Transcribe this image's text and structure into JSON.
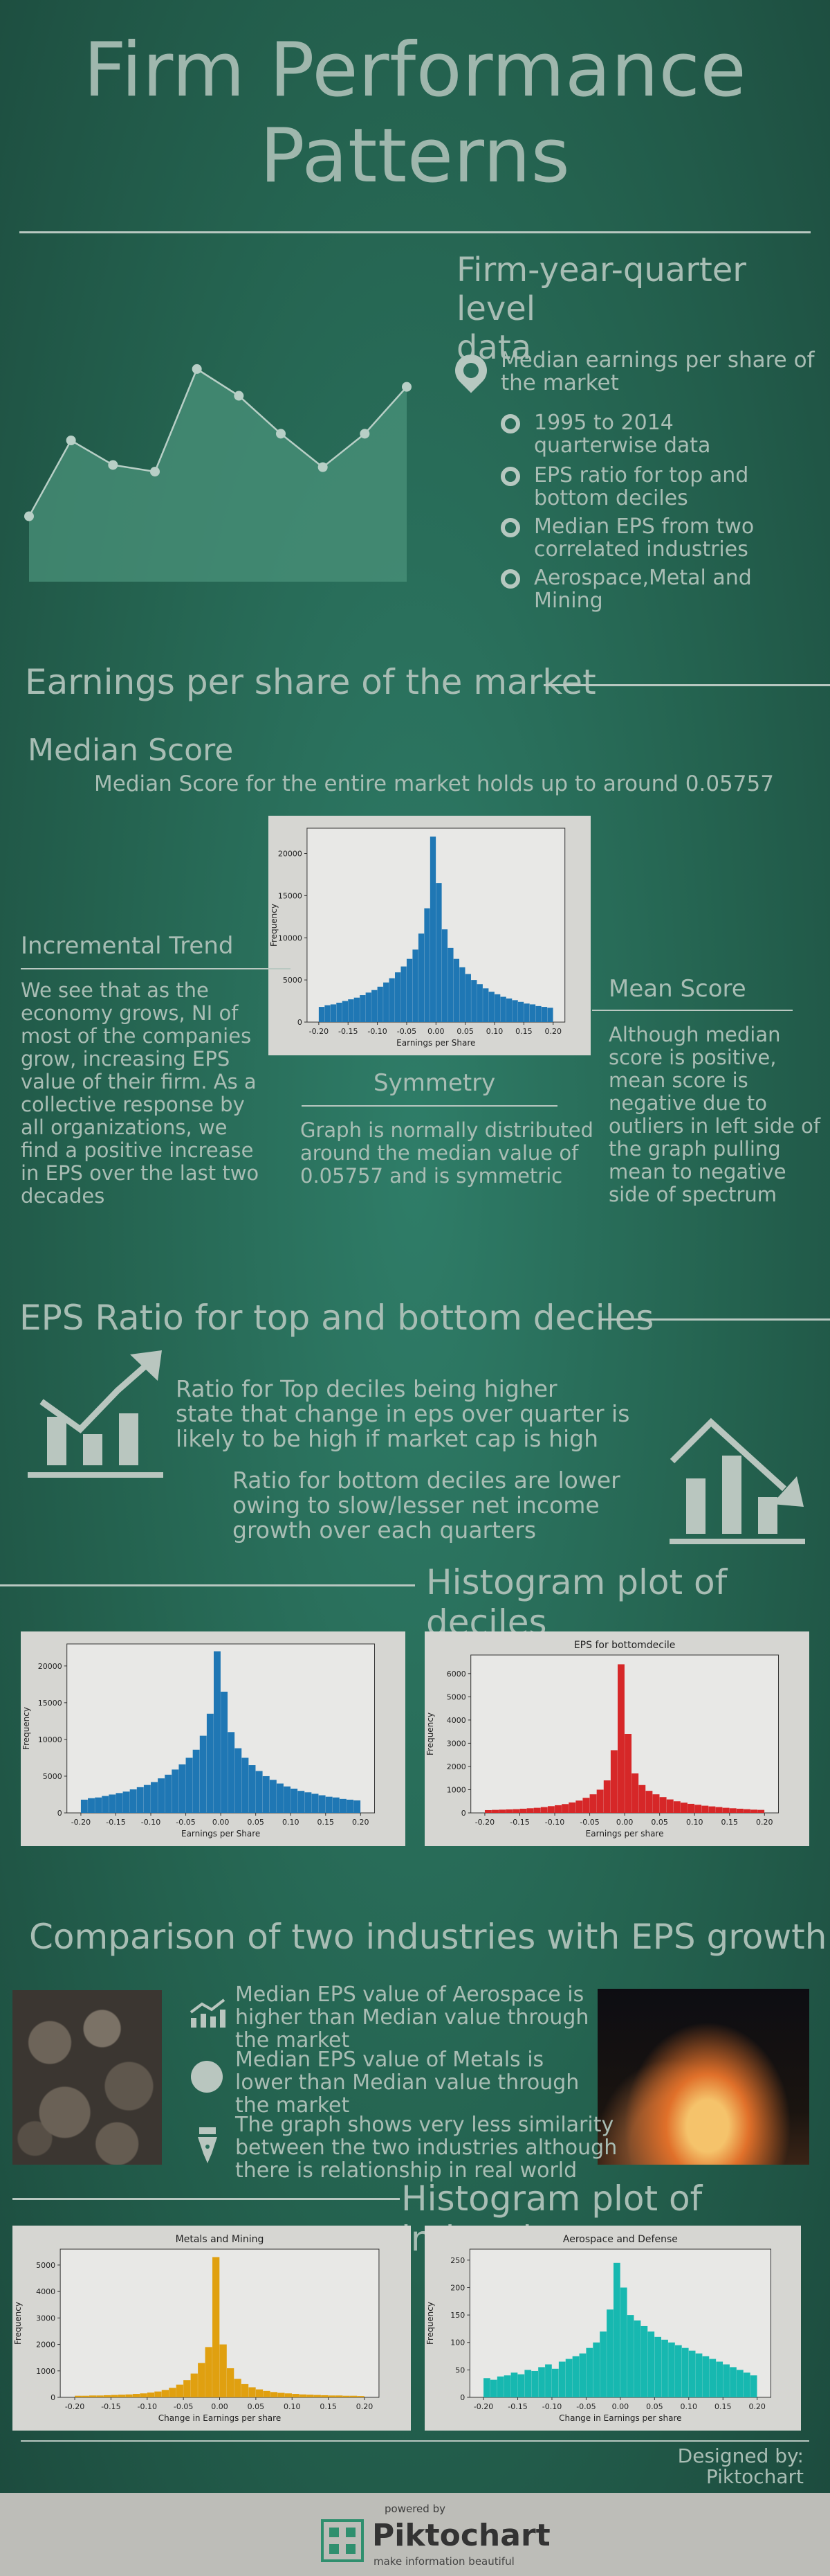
{
  "header": {
    "title_line1": "Firm Performance",
    "title_line2": "Patterns"
  },
  "intro": {
    "heading_line1": "Firm-year-quarter level",
    "heading_line2": "data",
    "main_point_line1": "Median earnings per share of",
    "main_point_line2": "the market",
    "bullets": [
      {
        "line1": "1995 to 2014",
        "line2": "quarterwise data"
      },
      {
        "line1": "EPS ratio for top and",
        "line2": "bottom deciles"
      },
      {
        "line1": "Median EPS from two",
        "line2": "correlated industries"
      },
      {
        "line1": "Aerospace,Metal and",
        "line2": "Mining"
      }
    ],
    "area_chart": {
      "values": [
        2,
        5.4,
        4.3,
        4.0,
        8.6,
        7.4,
        5.7,
        4.2,
        5.7,
        7.8
      ]
    }
  },
  "section_eps": {
    "heading": "Earnings per share of the market",
    "median_title": "Median Score",
    "median_text": "Median Score for the entire market holds up to around 0.05757",
    "incremental_title": "Incremental Trend",
    "incremental_lines": [
      "We see that as the",
      "economy grows, NI of",
      "most of the companies",
      "grow, increasing EPS",
      "value of their firm. As a",
      "collective response by",
      "all organizations, we",
      "find a positive increase",
      "in EPS over the last two",
      "decades"
    ],
    "symmetry_title": "Symmetry",
    "symmetry_lines": [
      "Graph is normally distributed",
      "around the median value of",
      "0.05757 and is symmetric"
    ],
    "mean_title": "Mean Score",
    "mean_lines": [
      "Although median",
      "score is positive,",
      "mean score is",
      "negative due to",
      "outliers in left side of",
      "the graph pulling",
      "mean to negative",
      "side of spectrum"
    ]
  },
  "section_ratio": {
    "heading": "EPS Ratio for top and bottom deciles",
    "top_lines": [
      "Ratio for Top deciles being higher",
      "state that change in eps over quarter is",
      "likely to be high if market cap is high"
    ],
    "bottom_lines": [
      "Ratio for bottom deciles are lower",
      "owing to slow/lesser net income",
      "growth over each quarters"
    ],
    "icon_up": "chart-up-icon",
    "icon_down": "chart-down-icon"
  },
  "section_deciles": {
    "heading": "Histogram plot of deciles"
  },
  "section_industries": {
    "heading": "Comparison of two industries with EPS growth",
    "points": [
      {
        "icon": "growth-chart-icon",
        "line1": "Median EPS value of Aerospace is",
        "line2": "higher than Median value through",
        "line3": "the market"
      },
      {
        "icon": "circle-icon",
        "line1": "Median EPS value of Metals is",
        "line2": "lower than Median value through",
        "line3": "the market"
      },
      {
        "icon": "pen-icon",
        "line1": "The graph shows very less similarity",
        "line2": "between the two industries although",
        "line3": "there is relationship in real world"
      }
    ]
  },
  "section_ind_hist": {
    "heading": "Histogram plot of industries"
  },
  "credits": {
    "designed_line1": "Designed by:",
    "designed_line2": "Piktochart",
    "powered_by": "powered by",
    "brand": "Piktochart",
    "tagline": "make information beautiful"
  },
  "chart_data": [
    {
      "type": "bar",
      "title": "",
      "xlabel": "Earnings per Share",
      "ylabel": "Frequency",
      "color": "#1f77b4",
      "xlim": [
        -0.22,
        0.22
      ],
      "ylim": [
        0,
        23000
      ],
      "xticks": [
        "-0.20",
        "-0.15",
        "-0.10",
        "-0.05",
        "0.00",
        "0.05",
        "0.10",
        "0.15",
        "0.20"
      ],
      "yticks": [
        "0",
        "5000",
        "10000",
        "15000",
        "20000"
      ],
      "bin_start": -0.2,
      "bin_width": 0.01,
      "values": [
        1800,
        2000,
        2100,
        2300,
        2500,
        2700,
        2900,
        3200,
        3500,
        3800,
        4200,
        4700,
        5200,
        5900,
        6600,
        7500,
        8600,
        10500,
        13500,
        22000,
        16500,
        11000,
        8800,
        7500,
        6500,
        5700,
        5000,
        4500,
        4000,
        3600,
        3300,
        3000,
        2800,
        2600,
        2400,
        2200,
        2100,
        1900,
        1800,
        1700
      ]
    },
    {
      "type": "bar",
      "title": "",
      "xlabel": "Earnings per Share",
      "ylabel": "Frequency",
      "color": "#1f77b4",
      "xlim": [
        -0.22,
        0.22
      ],
      "ylim": [
        0,
        23000
      ],
      "xticks": [
        "-0.20",
        "-0.15",
        "-0.10",
        "-0.05",
        "0.00",
        "0.05",
        "0.10",
        "0.15",
        "0.20"
      ],
      "yticks": [
        "0",
        "5000",
        "10000",
        "15000",
        "20000"
      ],
      "bin_start": -0.2,
      "bin_width": 0.01,
      "values": [
        1800,
        2000,
        2100,
        2300,
        2500,
        2700,
        2900,
        3200,
        3500,
        3800,
        4200,
        4700,
        5200,
        5900,
        6600,
        7500,
        8600,
        10500,
        13500,
        22000,
        16500,
        11000,
        8800,
        7500,
        6500,
        5700,
        5000,
        4500,
        4000,
        3600,
        3300,
        3000,
        2800,
        2600,
        2400,
        2200,
        2100,
        1900,
        1800,
        1700
      ]
    },
    {
      "type": "bar",
      "title": "EPS for bottomdecile",
      "xlabel": "Earnings per share",
      "ylabel": "Frequency",
      "color": "#d62728",
      "xlim": [
        -0.22,
        0.22
      ],
      "ylim": [
        0,
        6800
      ],
      "xticks": [
        "-0.20",
        "-0.15",
        "-0.10",
        "-0.05",
        "0.00",
        "0.05",
        "0.10",
        "0.15",
        "0.20"
      ],
      "yticks": [
        "0",
        "1000",
        "2000",
        "3000",
        "4000",
        "5000",
        "6000"
      ],
      "bin_start": -0.2,
      "bin_width": 0.01,
      "values": [
        120,
        130,
        140,
        150,
        160,
        180,
        200,
        220,
        250,
        290,
        330,
        380,
        450,
        530,
        650,
        800,
        1000,
        1400,
        2700,
        6400,
        3400,
        1700,
        1200,
        950,
        800,
        680,
        580,
        500,
        440,
        390,
        350,
        310,
        280,
        250,
        220,
        200,
        180,
        160,
        140,
        130
      ]
    },
    {
      "type": "bar",
      "title": "Metals and Mining",
      "xlabel": "Change in Earnings per share",
      "ylabel": "Frequency",
      "color": "#e0a010",
      "xlim": [
        -0.22,
        0.22
      ],
      "ylim": [
        0,
        5600
      ],
      "xticks": [
        "-0.20",
        "-0.15",
        "-0.10",
        "-0.05",
        "0.00",
        "0.05",
        "0.10",
        "0.15",
        "0.20"
      ],
      "yticks": [
        "0",
        "1000",
        "2000",
        "3000",
        "4000",
        "5000"
      ],
      "bin_start": -0.2,
      "bin_width": 0.01,
      "values": [
        60,
        60,
        70,
        70,
        80,
        90,
        100,
        110,
        130,
        150,
        180,
        220,
        280,
        360,
        480,
        650,
        900,
        1300,
        1900,
        5300,
        2000,
        1100,
        700,
        500,
        380,
        300,
        240,
        200,
        170,
        150,
        130,
        110,
        100,
        90,
        80,
        70,
        70,
        60,
        60,
        50
      ]
    },
    {
      "type": "bar",
      "title": "Aerospace and Defense",
      "xlabel": "Change in Earnings per share",
      "ylabel": "Frequency",
      "color": "#17b8b0",
      "xlim": [
        -0.22,
        0.22
      ],
      "ylim": [
        0,
        270
      ],
      "xticks": [
        "-0.20",
        "-0.15",
        "-0.10",
        "-0.05",
        "0.00",
        "0.05",
        "0.10",
        "0.15",
        "0.20"
      ],
      "yticks": [
        "0",
        "50",
        "100",
        "150",
        "200",
        "250"
      ],
      "bin_start": -0.2,
      "bin_width": 0.01,
      "values": [
        35,
        32,
        38,
        40,
        45,
        42,
        50,
        48,
        55,
        60,
        52,
        65,
        70,
        75,
        80,
        90,
        100,
        120,
        160,
        245,
        200,
        150,
        140,
        130,
        120,
        110,
        105,
        100,
        95,
        90,
        85,
        80,
        75,
        70,
        65,
        60,
        55,
        50,
        45,
        40
      ]
    }
  ]
}
